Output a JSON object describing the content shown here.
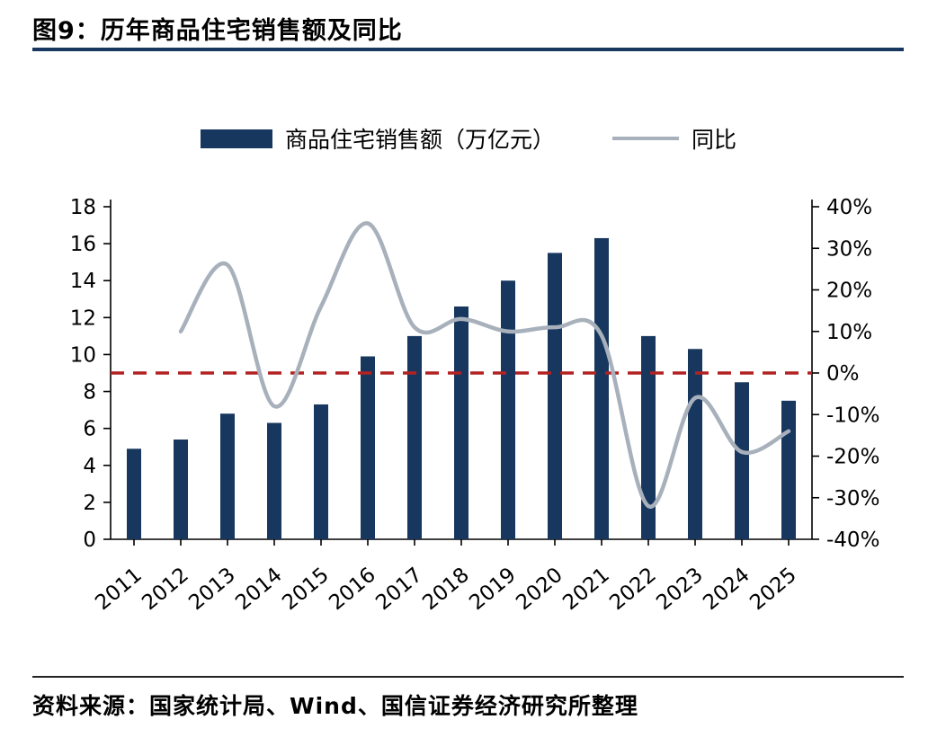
{
  "header": {
    "title": "图9：历年商品住宅销售额及同比"
  },
  "chart_data": {
    "type": "combo",
    "title": "图9：历年商品住宅销售额及同比",
    "categories": [
      "2011",
      "2012",
      "2013",
      "2014",
      "2015",
      "2016",
      "2017",
      "2018",
      "2019",
      "2020",
      "2021",
      "2022",
      "2023",
      "2024",
      "2025"
    ],
    "series": [
      {
        "name": "商品住宅销售额（万亿元）",
        "type": "bar",
        "axis": "left",
        "color": "#17375e",
        "values": [
          4.9,
          5.4,
          6.8,
          6.3,
          7.3,
          9.9,
          11.0,
          12.6,
          14.0,
          15.5,
          16.3,
          11.0,
          10.3,
          8.5,
          7.5
        ]
      },
      {
        "name": "同比",
        "type": "line",
        "axis": "right",
        "color": "#a8b1bb",
        "values": [
          null,
          10,
          26,
          -8,
          16,
          36,
          11,
          13,
          10,
          11,
          9,
          -32,
          -6,
          -19,
          -14
        ]
      }
    ],
    "left_axis": {
      "min": 0,
      "max": 18,
      "step": 2
    },
    "right_axis": {
      "min": -40,
      "max": 40,
      "step": 10,
      "suffix": "%"
    },
    "reference_line": {
      "value": 0,
      "axis": "right",
      "color": "#b22222",
      "style": "dashed"
    },
    "legend_position": "top",
    "grid": false
  },
  "footer": {
    "source": "资料来源：国家统计局、Wind、国信证券经济研究所整理"
  }
}
